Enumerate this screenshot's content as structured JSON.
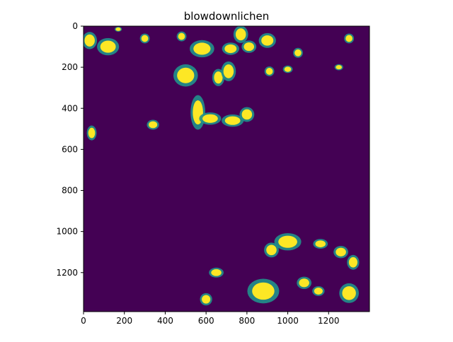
{
  "chart_data": {
    "type": "heatmap",
    "title": "blowdownlichen",
    "xlabel": "",
    "ylabel": "",
    "xlim": [
      0,
      1400
    ],
    "ylim": [
      1390,
      0
    ],
    "x_ticks": [
      0,
      200,
      400,
      600,
      800,
      1000,
      1200
    ],
    "y_ticks": [
      0,
      200,
      400,
      600,
      800,
      1000,
      1200
    ],
    "x_tick_labels": [
      "0",
      "200",
      "400",
      "600",
      "800",
      "1000",
      "1200"
    ],
    "y_tick_labels": [
      "0",
      "200",
      "400",
      "600",
      "800",
      "1000",
      "1200"
    ],
    "colormap": "viridis",
    "values_present": [
      0,
      1
    ],
    "grid": false,
    "legend": "none",
    "colors": {
      "low": "#440154",
      "mid": "#21918c",
      "high": "#fde725",
      "axis": "#000000",
      "background": "#ffffff"
    },
    "clusters": [
      {
        "x": 30,
        "y": 70,
        "w": 60,
        "h": 70
      },
      {
        "x": 120,
        "y": 100,
        "w": 90,
        "h": 70
      },
      {
        "x": 170,
        "y": 15,
        "w": 30,
        "h": 20
      },
      {
        "x": 300,
        "y": 60,
        "w": 40,
        "h": 40
      },
      {
        "x": 480,
        "y": 50,
        "w": 40,
        "h": 40
      },
      {
        "x": 500,
        "y": 240,
        "w": 100,
        "h": 90
      },
      {
        "x": 580,
        "y": 110,
        "w": 100,
        "h": 70
      },
      {
        "x": 660,
        "y": 250,
        "w": 50,
        "h": 70
      },
      {
        "x": 710,
        "y": 220,
        "w": 60,
        "h": 80
      },
      {
        "x": 720,
        "y": 110,
        "w": 70,
        "h": 50
      },
      {
        "x": 770,
        "y": 40,
        "w": 60,
        "h": 70
      },
      {
        "x": 810,
        "y": 100,
        "w": 60,
        "h": 50
      },
      {
        "x": 900,
        "y": 70,
        "w": 70,
        "h": 60
      },
      {
        "x": 910,
        "y": 220,
        "w": 40,
        "h": 40
      },
      {
        "x": 1050,
        "y": 130,
        "w": 40,
        "h": 40
      },
      {
        "x": 1000,
        "y": 210,
        "w": 40,
        "h": 30
      },
      {
        "x": 1250,
        "y": 200,
        "w": 35,
        "h": 25
      },
      {
        "x": 1300,
        "y": 60,
        "w": 40,
        "h": 40
      },
      {
        "x": 560,
        "y": 420,
        "w": 60,
        "h": 140
      },
      {
        "x": 620,
        "y": 450,
        "w": 90,
        "h": 50
      },
      {
        "x": 730,
        "y": 460,
        "w": 90,
        "h": 50
      },
      {
        "x": 800,
        "y": 430,
        "w": 60,
        "h": 60
      },
      {
        "x": 340,
        "y": 480,
        "w": 50,
        "h": 40
      },
      {
        "x": 40,
        "y": 520,
        "w": 40,
        "h": 60
      },
      {
        "x": 1000,
        "y": 1050,
        "w": 110,
        "h": 70
      },
      {
        "x": 920,
        "y": 1090,
        "w": 60,
        "h": 60
      },
      {
        "x": 1160,
        "y": 1060,
        "w": 60,
        "h": 40
      },
      {
        "x": 1260,
        "y": 1100,
        "w": 60,
        "h": 50
      },
      {
        "x": 1320,
        "y": 1150,
        "w": 50,
        "h": 60
      },
      {
        "x": 650,
        "y": 1200,
        "w": 60,
        "h": 40
      },
      {
        "x": 880,
        "y": 1290,
        "w": 130,
        "h": 100
      },
      {
        "x": 1080,
        "y": 1250,
        "w": 60,
        "h": 50
      },
      {
        "x": 1150,
        "y": 1290,
        "w": 50,
        "h": 40
      },
      {
        "x": 1300,
        "y": 1300,
        "w": 80,
        "h": 80
      },
      {
        "x": 600,
        "y": 1330,
        "w": 50,
        "h": 50
      }
    ]
  }
}
